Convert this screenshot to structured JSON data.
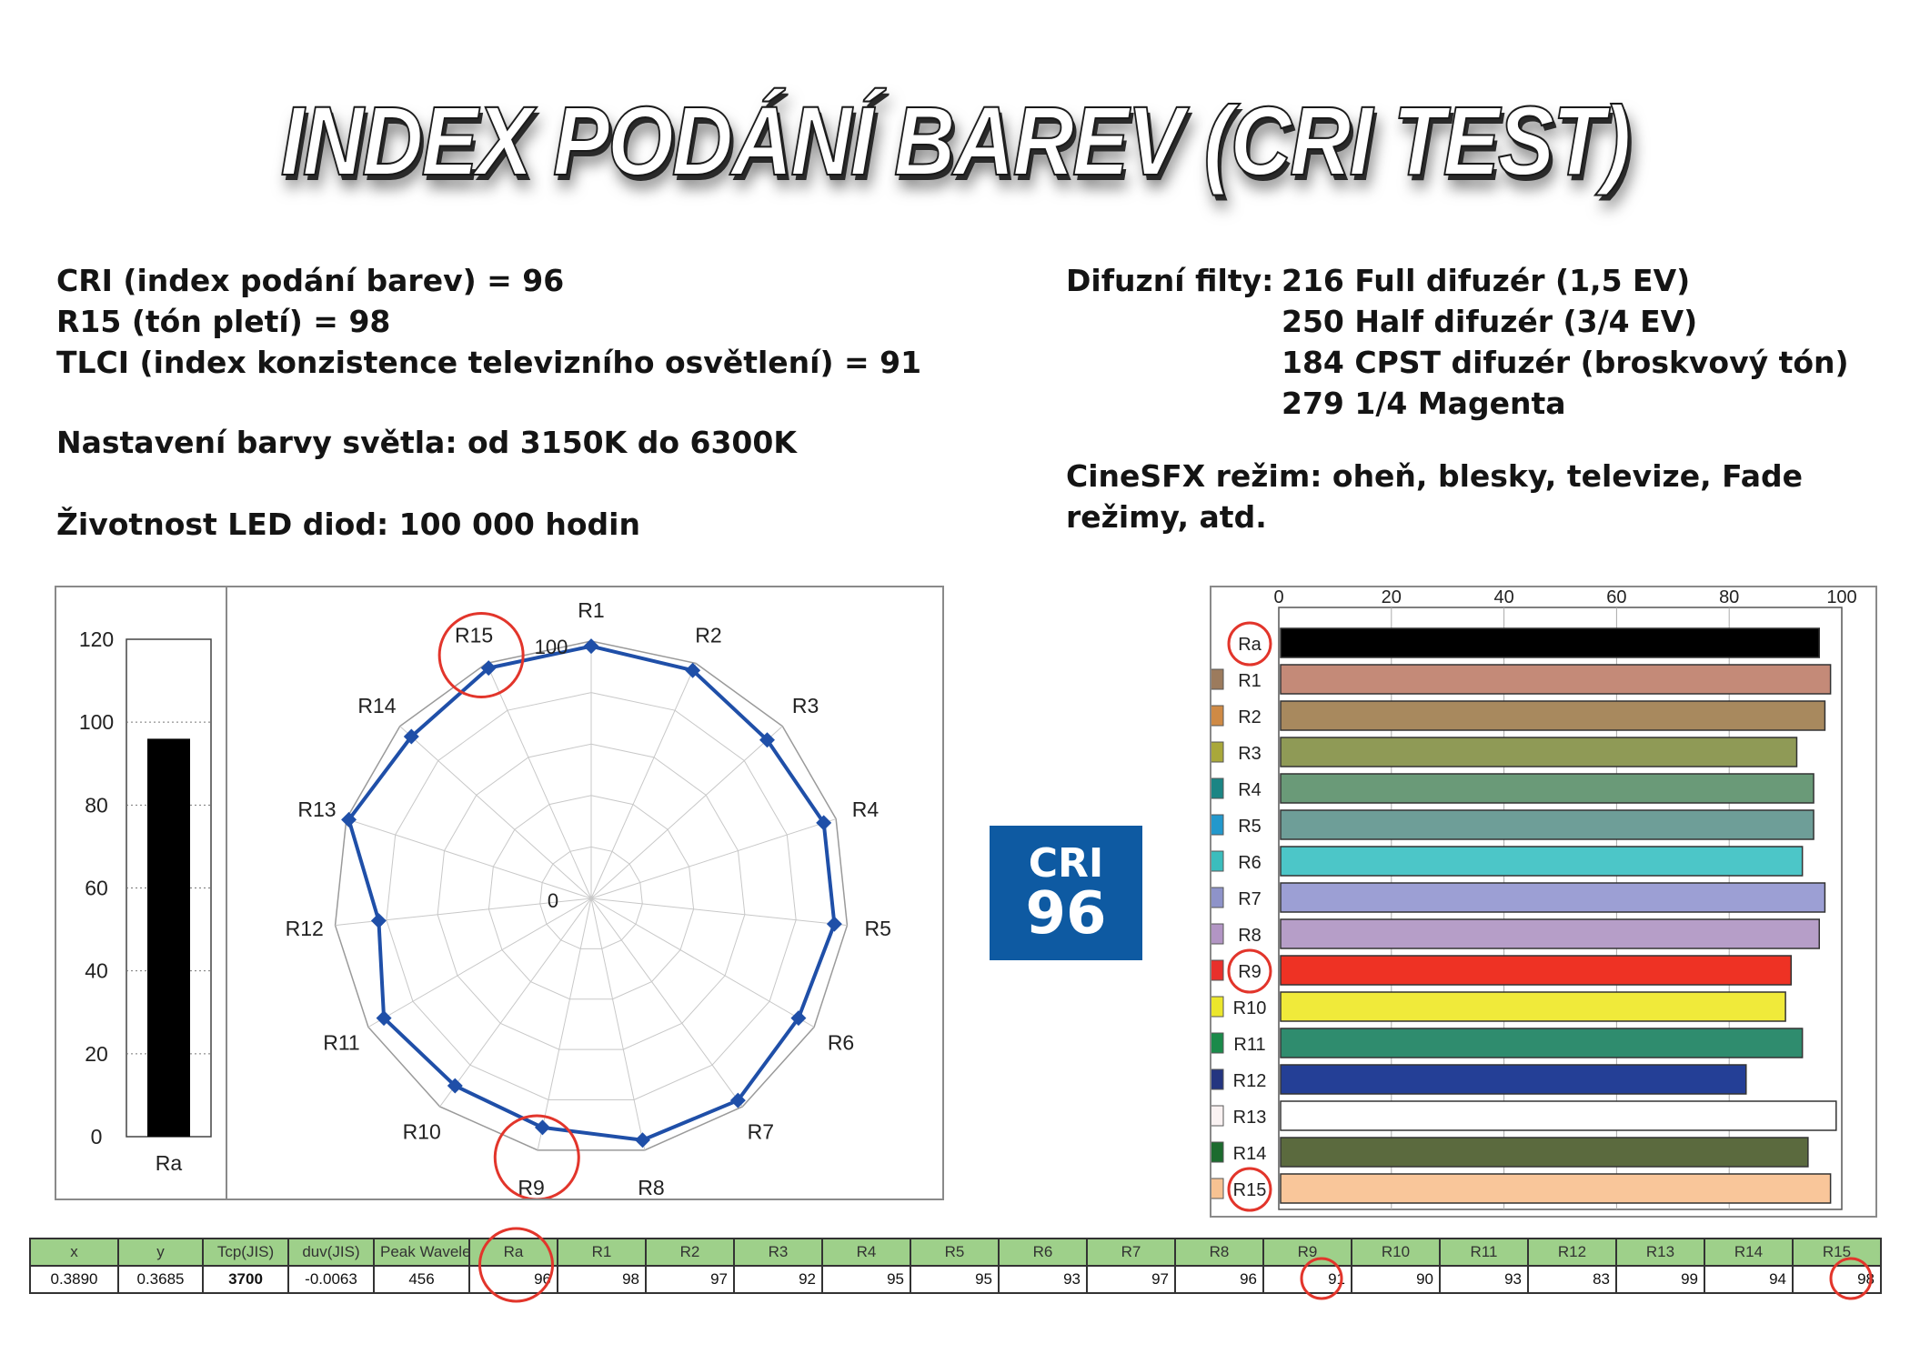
{
  "title": "INDEX PODÁNÍ BAREV (CRI TEST)",
  "specs_left": [
    "CRI (index podání barev) = 96",
    "R15 (tón pletí) = 98",
    "TLCI (index konzistence televizního osvětlení) = 91",
    "Nastavení barvy světla: od 3150K do 6300K",
    "Životnost LED diod: 100 000 hodin"
  ],
  "specs_right": {
    "diffusion_label": "Difuzní filty:",
    "diffusion": [
      "216 Full difuzér (1,5 EV)",
      "250 Half difuzér (3/4 EV)",
      "184 CPST difuzér (broskvový tón)",
      "279 1/4 Magenta"
    ],
    "cinesfx_line1": "CineSFX režim: oheň, blesky, televize, Fade",
    "cinesfx_line2": "režimy, atd."
  },
  "badge": {
    "line1": "CRI",
    "line2": "96"
  },
  "table": {
    "headers": [
      "x",
      "y",
      "Tcp(JIS)",
      "duv(JIS)",
      "Peak Wavele",
      "Ra",
      "R1",
      "R2",
      "R3",
      "R4",
      "R5",
      "R6",
      "R7",
      "R8",
      "R9",
      "R10",
      "R11",
      "R12",
      "R13",
      "R14",
      "R15"
    ],
    "values": [
      "0.3890",
      "0.3685",
      "3700",
      "-0.0063",
      "456",
      "96",
      "98",
      "97",
      "92",
      "95",
      "95",
      "93",
      "97",
      "96",
      "91",
      "90",
      "93",
      "83",
      "99",
      "94",
      "98"
    ],
    "highlighted": [
      "Ra",
      "R9",
      "R15"
    ]
  },
  "chart_data": [
    {
      "type": "bar",
      "orientation": "vertical",
      "categories": [
        "Ra"
      ],
      "values": [
        96
      ],
      "ylim": [
        0,
        120
      ],
      "yticks": [
        "0",
        "20",
        "40",
        "60",
        "80",
        "100",
        "120"
      ],
      "color": "#000000"
    },
    {
      "type": "radar",
      "categories": [
        "R1",
        "R2",
        "R3",
        "R4",
        "R5",
        "R6",
        "R7",
        "R8",
        "R9",
        "R10",
        "R11",
        "R12",
        "R13",
        "R14",
        "R15"
      ],
      "values": [
        98,
        97,
        92,
        95,
        95,
        93,
        97,
        96,
        91,
        90,
        93,
        83,
        99,
        94,
        98
      ],
      "rlim": [
        0,
        100
      ],
      "rlabels": [
        "0",
        "100"
      ],
      "color": "#1f4fa8",
      "highlighted": [
        "R9",
        "R15"
      ]
    },
    {
      "type": "bar",
      "orientation": "horizontal",
      "categories": [
        "Ra",
        "R1",
        "R2",
        "R3",
        "R4",
        "R5",
        "R6",
        "R7",
        "R8",
        "R9",
        "R10",
        "R11",
        "R12",
        "R13",
        "R14",
        "R15"
      ],
      "values": [
        96,
        98,
        97,
        92,
        95,
        95,
        93,
        97,
        96,
        91,
        90,
        93,
        83,
        99,
        94,
        98
      ],
      "xlim": [
        0,
        100
      ],
      "xticks": [
        "0",
        "20",
        "40",
        "60",
        "80",
        "100"
      ],
      "bar_colors": [
        "#000000",
        "#c48a78",
        "#a8895e",
        "#8f9a56",
        "#6a9a78",
        "#6e9e98",
        "#4cc6c8",
        "#9c9fd4",
        "#b69ec8",
        "#ee3224",
        "#f0ea3a",
        "#2f8c6e",
        "#243f96",
        "#ffffff",
        "#5b6a3e",
        "#f9c69a"
      ],
      "swatch_colors": [
        "#9c7b5d",
        "#cf8a45",
        "#a9a83a",
        "#1b8584",
        "#2398cc",
        "#3bbdbd",
        "#8e93c9",
        "#b295c4",
        "#e8302b",
        "#ece72c",
        "#1b8a4a",
        "#243580",
        "#faf2f2",
        "#1c6b2e",
        "#f7c292"
      ],
      "highlighted": [
        "Ra",
        "R9",
        "R15"
      ]
    }
  ]
}
